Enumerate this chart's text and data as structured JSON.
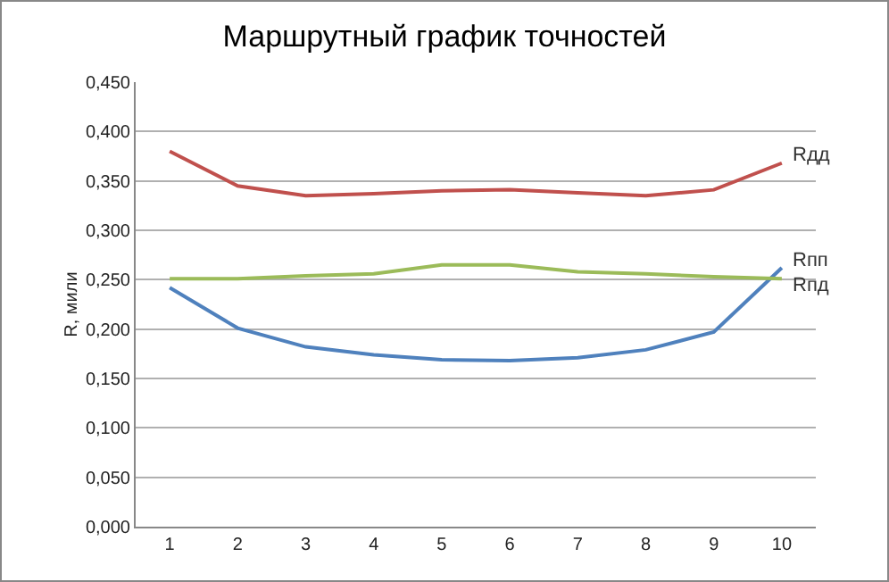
{
  "chart_data": {
    "type": "line",
    "title": "Маршрутный график точностей",
    "ylabel": "R, мили",
    "categories": [
      "1",
      "2",
      "3",
      "4",
      "5",
      "6",
      "7",
      "8",
      "9",
      "10"
    ],
    "series": [
      {
        "name": "Rдд",
        "color": "#c0504d",
        "values": [
          0.38,
          0.345,
          0.335,
          0.337,
          0.34,
          0.341,
          0.338,
          0.335,
          0.341,
          0.368
        ]
      },
      {
        "name": "Rпп",
        "color": "#4f81bd",
        "values": [
          0.242,
          0.201,
          0.182,
          0.174,
          0.169,
          0.168,
          0.171,
          0.179,
          0.197,
          0.262
        ]
      },
      {
        "name": "Rпд",
        "color": "#9bbb59",
        "values": [
          0.251,
          0.251,
          0.254,
          0.256,
          0.265,
          0.265,
          0.258,
          0.256,
          0.253,
          0.251
        ]
      }
    ],
    "ylim": [
      0,
      0.45
    ],
    "yticks": [
      {
        "value": 0,
        "label": "0,000"
      },
      {
        "value": 0.05,
        "label": "0,050"
      },
      {
        "value": 0.1,
        "label": "0,100"
      },
      {
        "value": 0.15,
        "label": "0,150"
      },
      {
        "value": 0.2,
        "label": "0,200"
      },
      {
        "value": 0.25,
        "label": "0,250"
      },
      {
        "value": 0.3,
        "label": "0,300"
      },
      {
        "value": 0.35,
        "label": "0,350"
      },
      {
        "value": 0.4,
        "label": "0,400"
      },
      {
        "value": 0.45,
        "label": "0,450"
      }
    ],
    "grid": "y",
    "legend": false,
    "marker": "none",
    "line_style": "solid"
  }
}
